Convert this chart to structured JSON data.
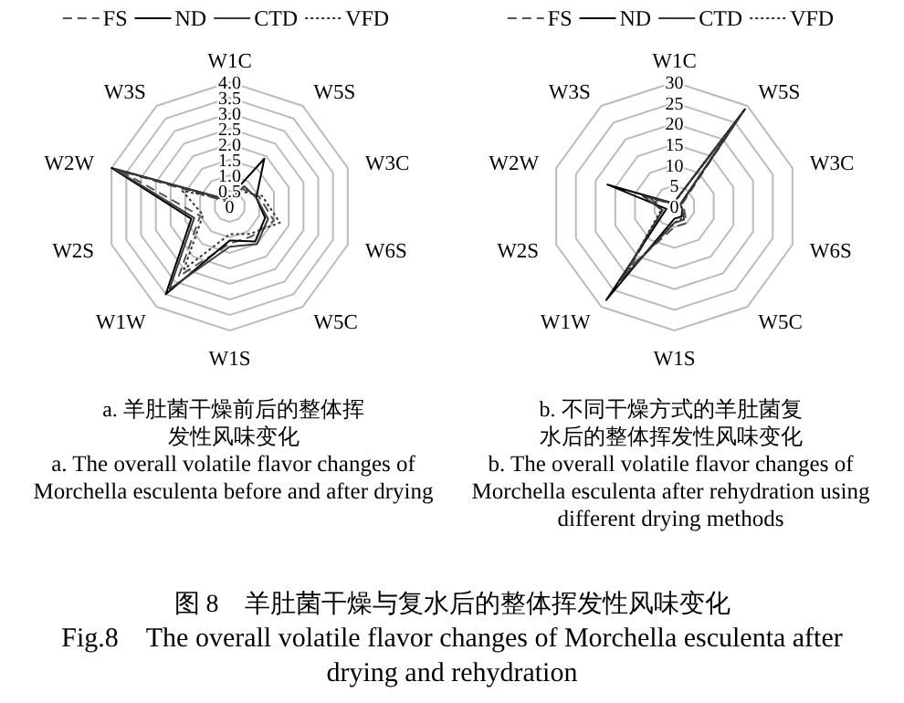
{
  "chart_data": [
    {
      "type": "radar",
      "title": "a. 羊肚菌干燥前后的整体挥发性风味变化",
      "subtitle": "a. The overall volatile flavor changes of Morchella esculenta before and after drying",
      "categories": [
        "W1C",
        "W5S",
        "W3C",
        "W6S",
        "W5C",
        "W1S",
        "W1W",
        "W2S",
        "W2W",
        "W3S"
      ],
      "ylim": [
        0,
        4
      ],
      "yticks": [
        {
          "value": 0,
          "label": "0"
        },
        {
          "value": 0.5,
          "label": "0.5"
        },
        {
          "value": 1,
          "label": "1.0"
        },
        {
          "value": 1.5,
          "label": "1.5"
        },
        {
          "value": 2,
          "label": "2.0"
        },
        {
          "value": 2.5,
          "label": "2.5"
        },
        {
          "value": 3,
          "label": "3.0"
        },
        {
          "value": 3.5,
          "label": "3.5"
        },
        {
          "value": 4,
          "label": "4.0"
        }
      ],
      "grid": true,
      "legend": "top",
      "series": [
        {
          "name": "FS",
          "color": "#555555",
          "line_style": "dashed",
          "values": [
            0.2,
            0.7,
            1.0,
            1.5,
            1.2,
            1.2,
            2.8,
            1.0,
            3.7,
            0.2
          ]
        },
        {
          "name": "ND",
          "color": "#000000",
          "line_style": "solid",
          "values": [
            0.3,
            1.9,
            0.9,
            1.2,
            1.4,
            1.1,
            3.5,
            1.3,
            4.0,
            0.3
          ]
        },
        {
          "name": "CTD",
          "color": "#3a3a3a",
          "line_style": "solid",
          "values": [
            0.3,
            0.8,
            0.9,
            1.3,
            1.5,
            1.3,
            3.3,
            1.2,
            3.9,
            0.3
          ]
        },
        {
          "name": "VFD",
          "color": "#333333",
          "line_style": "dotted",
          "values": [
            0.3,
            0.6,
            1.1,
            1.7,
            1.1,
            0.9,
            2.5,
            0.9,
            1.6,
            0.3
          ]
        }
      ],
      "annotations": [
        "图 8　羊肚菌干燥与复水后的整体挥发性风味变化",
        "Fig.8　The overall volatile flavor changes of Morchella esculenta after drying and rehydration"
      ]
    },
    {
      "type": "radar",
      "title": "b. 不同干燥方式的羊肚菌复水后的整体挥发性风味变化",
      "subtitle": "b. The overall volatile flavor changes of Morchella esculenta after rehydration using different drying methods",
      "categories": [
        "W1C",
        "W5S",
        "W3C",
        "W6S",
        "W5C",
        "W1S",
        "W1W",
        "W2S",
        "W2W",
        "W3S"
      ],
      "ylim": [
        0,
        30
      ],
      "yticks": [
        0,
        5,
        10,
        15,
        20,
        25,
        30
      ],
      "grid": true,
      "legend": "top",
      "series": [
        {
          "name": "FS",
          "color": "#555555",
          "line_style": "dashed",
          "values": [
            1,
            27,
            2,
            2.5,
            5,
            5,
            18,
            3,
            6,
            1
          ]
        },
        {
          "name": "ND",
          "color": "#000000",
          "line_style": "solid",
          "values": [
            1,
            29,
            1.5,
            2,
            3,
            3,
            28,
            2,
            17,
            1
          ]
        },
        {
          "name": "CTD",
          "color": "#3a3a3a",
          "line_style": "solid",
          "values": [
            1,
            28,
            1.5,
            2,
            4,
            4,
            22,
            3,
            8,
            1
          ]
        },
        {
          "name": "VFD",
          "color": "#333333",
          "line_style": "dotted",
          "values": [
            1,
            27,
            1.5,
            2,
            3.5,
            4,
            20,
            3.5,
            5,
            1
          ]
        }
      ]
    }
  ]
}
